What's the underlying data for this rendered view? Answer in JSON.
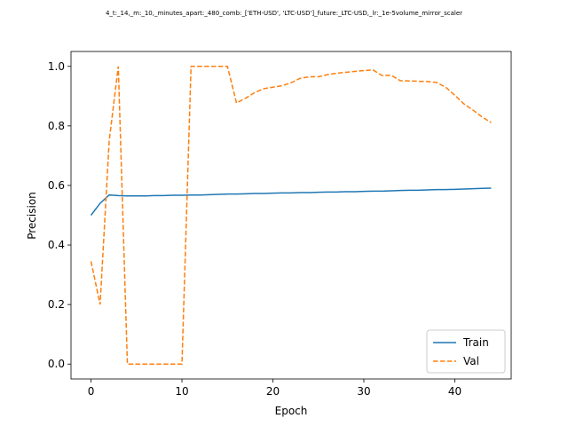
{
  "chart_data": {
    "type": "line",
    "title": "4_t:_14,_m:_10,_minutes_apart:_480_comb:_['ETH-USD', 'LTC-USD']_future:_LTC-USD,_lr:_1e-5volume_mirror_scaler",
    "xlabel": "Epoch",
    "ylabel": "Precision",
    "xlim": [
      -2.2,
      46.2
    ],
    "ylim": [
      -0.05,
      1.05
    ],
    "xticks": [
      0,
      10,
      20,
      30,
      40
    ],
    "yticks": [
      0.0,
      0.2,
      0.4,
      0.6,
      0.8,
      1.0
    ],
    "grid": false,
    "legend_position": "lower right",
    "series": [
      {
        "name": "Train",
        "color": "#1f77b4",
        "style": "solid",
        "x": [
          0,
          1,
          2,
          3,
          4,
          5,
          6,
          7,
          8,
          9,
          10,
          11,
          12,
          13,
          14,
          15,
          16,
          17,
          18,
          19,
          20,
          21,
          22,
          23,
          24,
          25,
          26,
          27,
          28,
          29,
          30,
          31,
          32,
          33,
          34,
          35,
          36,
          37,
          38,
          39,
          40,
          41,
          42,
          43,
          44
        ],
        "values": [
          0.5,
          0.54,
          0.568,
          0.566,
          0.565,
          0.565,
          0.565,
          0.566,
          0.566,
          0.567,
          0.567,
          0.568,
          0.568,
          0.569,
          0.57,
          0.571,
          0.571,
          0.572,
          0.573,
          0.573,
          0.574,
          0.575,
          0.575,
          0.576,
          0.576,
          0.577,
          0.578,
          0.578,
          0.579,
          0.579,
          0.58,
          0.581,
          0.581,
          0.582,
          0.583,
          0.584,
          0.584,
          0.585,
          0.586,
          0.586,
          0.587,
          0.588,
          0.589,
          0.59,
          0.591
        ]
      },
      {
        "name": "Val",
        "color": "#ff7f0e",
        "style": "dashed",
        "x": [
          0,
          1,
          2,
          3,
          4,
          5,
          6,
          7,
          8,
          9,
          10,
          11,
          12,
          13,
          14,
          15,
          16,
          17,
          18,
          19,
          20,
          21,
          22,
          23,
          24,
          25,
          26,
          27,
          28,
          29,
          30,
          31,
          32,
          33,
          34,
          35,
          36,
          37,
          38,
          39,
          40,
          41,
          42,
          43,
          44
        ],
        "values": [
          0.345,
          0.2,
          0.75,
          1.0,
          0.0,
          0.0,
          0.0,
          0.0,
          0.0,
          0.0,
          0.0,
          1.0,
          1.0,
          1.0,
          1.0,
          1.0,
          0.877,
          0.893,
          0.912,
          0.925,
          0.93,
          0.935,
          0.945,
          0.96,
          0.965,
          0.965,
          0.972,
          0.977,
          0.98,
          0.983,
          0.986,
          0.988,
          0.969,
          0.97,
          0.952,
          0.951,
          0.95,
          0.949,
          0.946,
          0.93,
          0.903,
          0.874,
          0.853,
          0.83,
          0.811
        ]
      }
    ]
  }
}
